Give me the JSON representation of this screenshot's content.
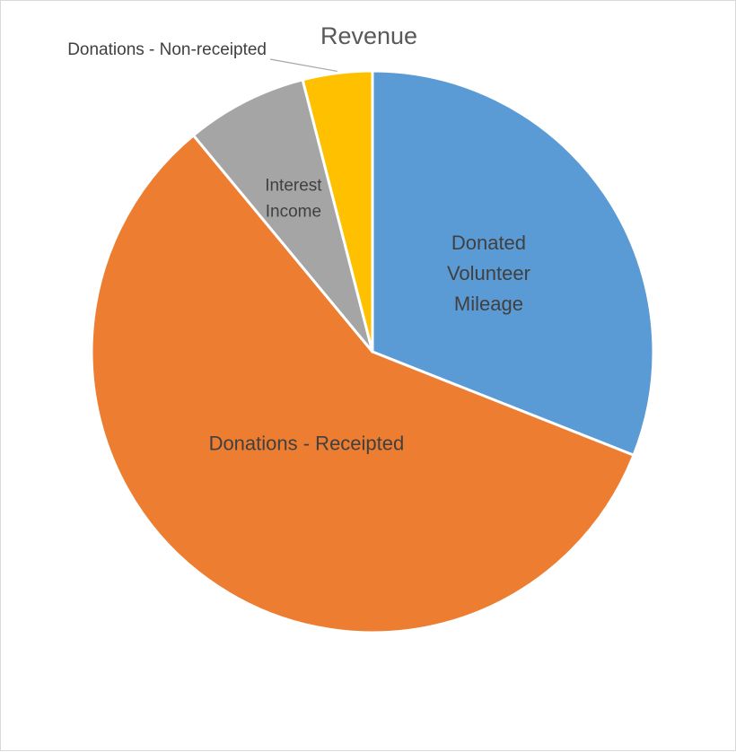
{
  "chart_data": {
    "type": "pie",
    "title": "Revenue",
    "legend": "none",
    "slices": [
      {
        "label": "Donated Volunteer Mileage",
        "value": 31.0,
        "color": "#5B9BD5"
      },
      {
        "label": "Donations - Receipted",
        "value": 58.0,
        "color": "#ED7D31"
      },
      {
        "label": "Interest Income",
        "value": 7.0,
        "color": "#A5A5A5"
      },
      {
        "label": "Donations - Non-receipted",
        "value": 4.0,
        "color": "#FFC000"
      }
    ]
  }
}
